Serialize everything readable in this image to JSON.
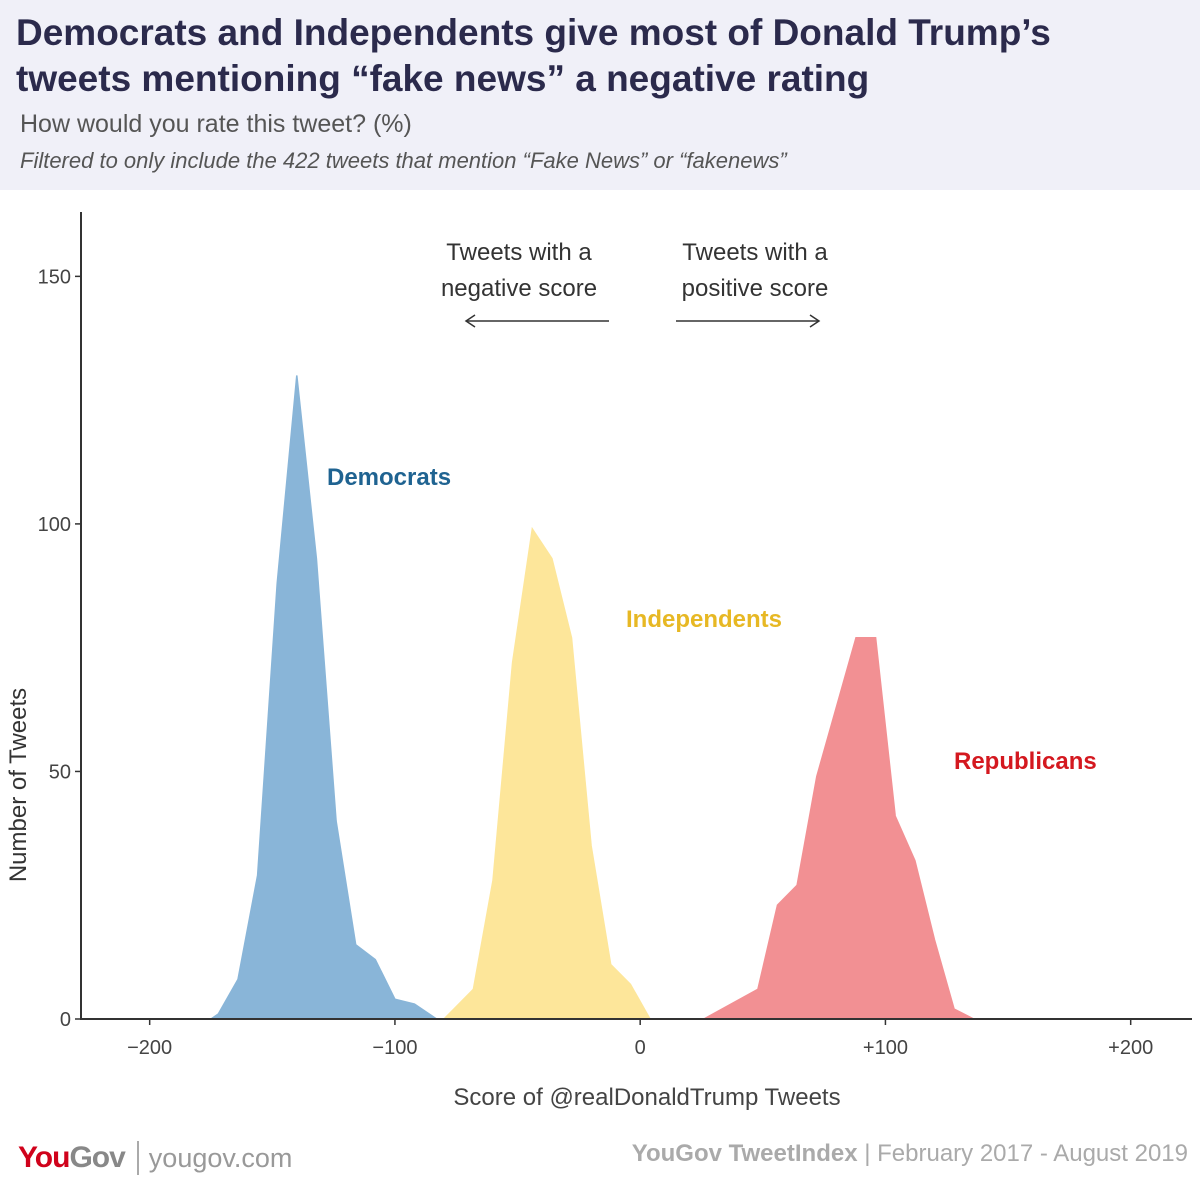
{
  "header": {
    "title_line1": "Democrats and Independents give most of Donald Trump’s",
    "title_line2": "tweets mentioning “fake news” a negative rating",
    "subtitle": "How would you rate this tweet? (%)",
    "note": "Filtered to only include the 422 tweets that mention “Fake News” or “fakenews”"
  },
  "footer": {
    "logo_you": "You",
    "logo_gov": "Gov",
    "url": "yougov.com",
    "brand": "YouGov TweetIndex",
    "separator": "|",
    "date_range": "February 2017 - August 2019"
  },
  "chart_data": {
    "type": "area",
    "xlabel": "Score of @realDonaldTrump Tweets",
    "ylabel": "Number of Tweets",
    "xlim": [
      -228,
      225
    ],
    "ylim": [
      0,
      163
    ],
    "x_ticks": [
      {
        "value": -200,
        "label": "−200"
      },
      {
        "value": -100,
        "label": "−100"
      },
      {
        "value": 0,
        "label": "0"
      },
      {
        "value": 100,
        "label": "+100"
      },
      {
        "value": 200,
        "label": "+200"
      }
    ],
    "y_ticks": [
      {
        "value": 0,
        "label": "0"
      },
      {
        "value": 50,
        "label": "50"
      },
      {
        "value": 100,
        "label": "100"
      },
      {
        "value": 150,
        "label": "150"
      }
    ],
    "grid": false,
    "annotations": {
      "negative_line1": "Tweets with a",
      "negative_line2": "negative score",
      "positive_line1": "Tweets with a",
      "positive_line2": "positive score"
    },
    "series": [
      {
        "name": "Democrats",
        "color": "#89b5d8",
        "label_color": "#1f6391",
        "x": [
          -232,
          -175,
          -172,
          -164,
          -156,
          -148,
          -140,
          -132,
          -124,
          -116,
          -108,
          -100,
          -92,
          -83
        ],
        "y": [
          0,
          0,
          1,
          8,
          29,
          88,
          130,
          93,
          40,
          15,
          12,
          4,
          3,
          0
        ]
      },
      {
        "name": "Independents",
        "color": "#fde69a",
        "label_color": "#e7b824",
        "x": [
          -80,
          -76,
          -68,
          -60,
          -52,
          -44,
          -36,
          -28,
          -20,
          -12,
          -4,
          4
        ],
        "y": [
          0,
          2,
          6,
          28,
          72,
          99,
          93,
          77,
          35,
          11,
          7,
          0
        ]
      },
      {
        "name": "Republicans",
        "color": "#f29093",
        "label_color": "#d4181f",
        "x": [
          26,
          48,
          56,
          64,
          72,
          88,
          96,
          104,
          112,
          120,
          128,
          136
        ],
        "y": [
          0,
          6,
          23,
          27,
          49,
          77,
          77,
          41,
          32,
          16,
          2,
          0
        ]
      }
    ]
  }
}
